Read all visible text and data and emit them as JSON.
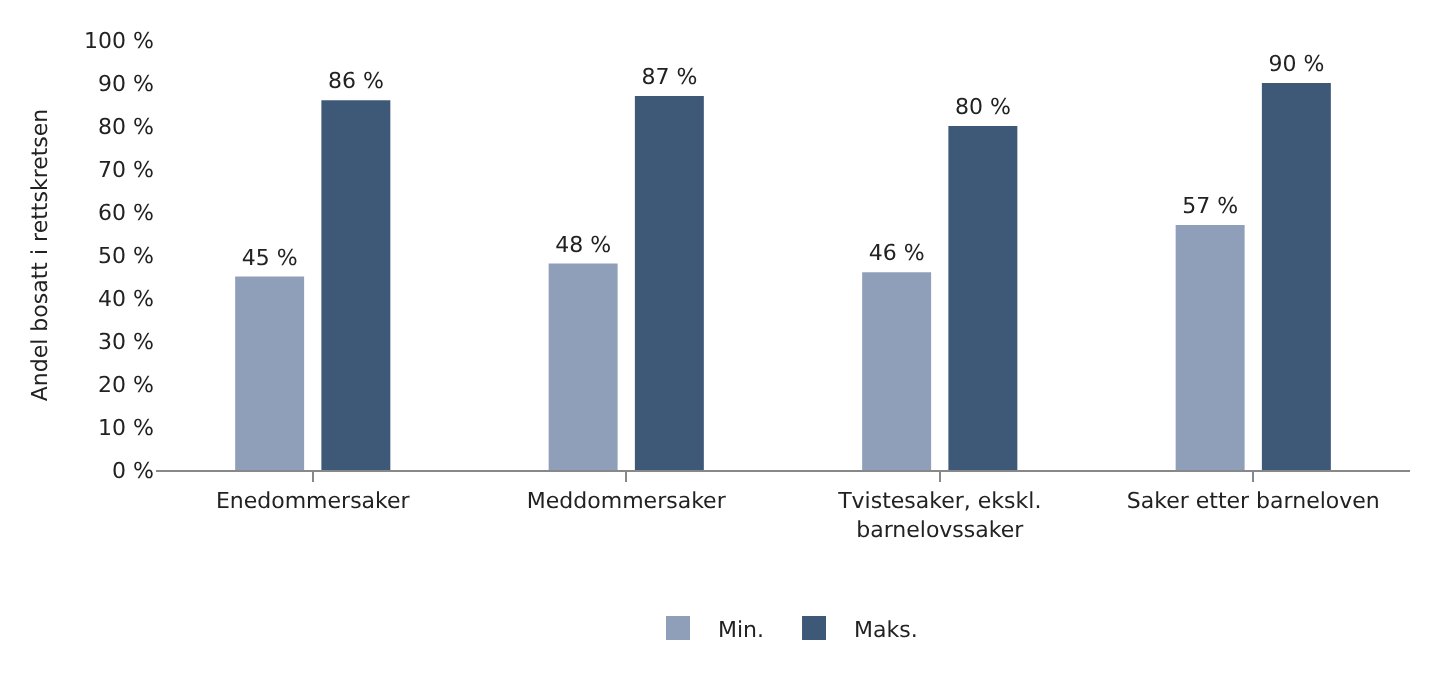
{
  "chart_data": {
    "type": "bar",
    "ylabel": "Andel bosatt i rettskretsen",
    "categories": [
      "Enedommersaker",
      "Meddommersaker",
      "Tvistesaker, ekskl. barnelovssaker",
      "Saker etter barneloven"
    ],
    "series": [
      {
        "name": "Min.",
        "color": "#8f9fba",
        "values": [
          45,
          48,
          46,
          57
        ],
        "value_labels": [
          "45 %",
          "48 %",
          "46 %",
          "57 %"
        ]
      },
      {
        "name": "Maks.",
        "color": "#3e5877",
        "values": [
          86,
          87,
          80,
          90
        ],
        "value_labels": [
          "86 %",
          "87 %",
          "80 %",
          "90 %"
        ]
      }
    ],
    "ylim": [
      0,
      100
    ],
    "yticks": [
      {
        "value": 0,
        "label": "0 %"
      },
      {
        "value": 10,
        "label": "10 %"
      },
      {
        "value": 20,
        "label": "20 %"
      },
      {
        "value": 30,
        "label": "30 %"
      },
      {
        "value": 40,
        "label": "40 %"
      },
      {
        "value": 50,
        "label": "50 %"
      },
      {
        "value": 60,
        "label": "60 %"
      },
      {
        "value": 70,
        "label": "70 %"
      },
      {
        "value": 80,
        "label": "80 %"
      },
      {
        "value": 90,
        "label": "90 %"
      },
      {
        "value": 100,
        "label": "100 %"
      }
    ],
    "grid": false,
    "legend": "bottom"
  }
}
